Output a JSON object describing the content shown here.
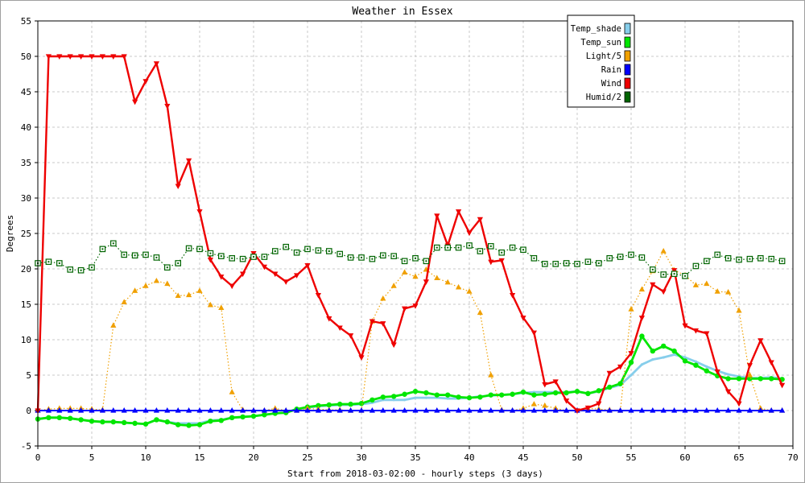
{
  "chart_data": {
    "type": "line",
    "title": "Weather in Essex",
    "xlabel": "Start from 2018-03-02:00 - hourly steps (3 days)",
    "ylabel": "Degrees",
    "xlim": [
      0,
      70
    ],
    "ylim": [
      -5,
      55
    ],
    "x_ticks": [
      0,
      5,
      10,
      15,
      20,
      25,
      30,
      35,
      40,
      45,
      50,
      55,
      60,
      65,
      70
    ],
    "y_ticks": [
      -5,
      0,
      5,
      10,
      15,
      20,
      25,
      30,
      35,
      40,
      45,
      50,
      55
    ],
    "grid": true,
    "legend_position": "top-right",
    "series": [
      {
        "name": "Temp_shade",
        "color": "#87ceeb",
        "marker": "dot",
        "style": "solid",
        "values": [
          -1.2,
          -1.0,
          -1.0,
          -1.1,
          -1.3,
          -1.5,
          -1.6,
          -1.6,
          -1.7,
          -1.8,
          -1.9,
          -1.3,
          -1.6,
          -1.8,
          -1.8,
          -1.8,
          -1.4,
          -1.3,
          -1.0,
          -0.9,
          -0.8,
          -0.6,
          -0.4,
          -0.3,
          0.2,
          0.4,
          0.6,
          0.7,
          0.8,
          0.8,
          0.9,
          1.1,
          1.5,
          1.5,
          1.5,
          1.8,
          1.8,
          1.8,
          1.7,
          1.7,
          1.8,
          2.0,
          2.1,
          2.2,
          2.3,
          2.5,
          2.6,
          2.6,
          2.6,
          2.6,
          2.7,
          2.4,
          2.7,
          3.2,
          3.6,
          5.0,
          6.5,
          7.2,
          7.5,
          7.9,
          7.5,
          6.9,
          6.2,
          5.6,
          5.1,
          4.8,
          4.6,
          4.6,
          4.7,
          4.5
        ]
      },
      {
        "name": "Temp_sun",
        "color": "#00e600",
        "marker": "circle",
        "style": "solid",
        "values": [
          -1.2,
          -1.0,
          -1.0,
          -1.1,
          -1.3,
          -1.5,
          -1.6,
          -1.6,
          -1.7,
          -1.8,
          -1.9,
          -1.3,
          -1.6,
          -2.0,
          -2.1,
          -2.0,
          -1.5,
          -1.4,
          -1.0,
          -0.9,
          -0.8,
          -0.6,
          -0.4,
          -0.3,
          0.2,
          0.5,
          0.7,
          0.8,
          0.9,
          0.9,
          1.0,
          1.5,
          1.9,
          2.0,
          2.3,
          2.7,
          2.5,
          2.2,
          2.2,
          1.9,
          1.8,
          1.9,
          2.2,
          2.2,
          2.3,
          2.6,
          2.2,
          2.3,
          2.5,
          2.5,
          2.7,
          2.4,
          2.8,
          3.3,
          3.8,
          6.8,
          10.5,
          8.4,
          9.1,
          8.4,
          7.0,
          6.4,
          5.6,
          4.9,
          4.5,
          4.5,
          4.5,
          4.5,
          4.5,
          4.4
        ]
      },
      {
        "name": "Light/5",
        "color": "#f0a000",
        "marker": "triangle-up",
        "style": "dotted",
        "values": [
          0.0,
          0.2,
          0.3,
          0.3,
          0.3,
          0.2,
          0.1,
          12.0,
          15.3,
          16.9,
          17.6,
          18.3,
          17.9,
          16.2,
          16.3,
          16.9,
          14.9,
          14.5,
          2.6,
          0.1,
          0.0,
          0.0,
          0.3,
          0.0,
          0.0,
          0.3,
          0.2,
          0.1,
          0.1,
          0.0,
          0.0,
          12.6,
          15.8,
          17.6,
          19.5,
          18.9,
          19.9,
          18.7,
          18.1,
          17.4,
          16.8,
          13.8,
          5.0,
          0.1,
          0.0,
          0.3,
          0.9,
          0.7,
          0.3,
          0.0,
          0.0,
          0.3,
          0.2,
          0.1,
          0.0,
          14.3,
          17.1,
          19.7,
          22.5,
          19.8,
          19.1,
          17.7,
          17.9,
          16.8,
          16.7,
          14.1,
          5.0,
          0.3,
          0.0,
          0.0
        ]
      },
      {
        "name": "Rain",
        "color": "#0000ff",
        "marker": "triangle-up",
        "style": "solid",
        "values": [
          0,
          0,
          0,
          0,
          0,
          0,
          0,
          0,
          0,
          0,
          0,
          0,
          0,
          0,
          0,
          0,
          0,
          0,
          0,
          0,
          0,
          0,
          0,
          0,
          0,
          0,
          0,
          0,
          0,
          0,
          0,
          0,
          0,
          0,
          0,
          0,
          0,
          0,
          0,
          0,
          0,
          0,
          0,
          0,
          0,
          0,
          0,
          0,
          0,
          0,
          0,
          0,
          0,
          0,
          0,
          0,
          0,
          0,
          0,
          0,
          0,
          0,
          0,
          0,
          0,
          0,
          0,
          0,
          0,
          0
        ]
      },
      {
        "name": "Wind",
        "color": "#ee0000",
        "marker": "triangle-down",
        "style": "solid",
        "values": [
          0.0,
          50.0,
          50.0,
          50.0,
          50.0,
          50.0,
          50.0,
          50.0,
          50.0,
          43.6,
          46.5,
          49.0,
          43.0,
          31.7,
          35.3,
          28.1,
          21.3,
          18.9,
          17.6,
          19.3,
          22.2,
          20.3,
          19.3,
          18.2,
          19.1,
          20.5,
          16.3,
          13.0,
          11.7,
          10.6,
          7.5,
          12.6,
          12.3,
          9.3,
          14.4,
          14.8,
          18.2,
          27.5,
          23.3,
          28.1,
          25.1,
          27.0,
          21.0,
          21.2,
          16.3,
          13.1,
          11.0,
          3.7,
          4.1,
          1.4,
          0.0,
          0.4,
          1.0,
          5.3,
          6.2,
          8.1,
          13.1,
          17.8,
          16.8,
          19.8,
          12.0,
          11.3,
          10.9,
          5.5,
          2.7,
          1.0,
          6.4,
          9.9,
          6.8,
          3.6
        ]
      },
      {
        "name": "Humid/2",
        "color": "#006400",
        "marker": "square",
        "style": "dotted",
        "values": [
          20.8,
          21.0,
          20.8,
          19.9,
          19.8,
          20.2,
          22.8,
          23.6,
          22.0,
          21.9,
          22.0,
          21.6,
          20.2,
          20.8,
          22.9,
          22.8,
          22.2,
          21.8,
          21.5,
          21.4,
          21.7,
          21.7,
          22.5,
          23.1,
          22.3,
          22.8,
          22.6,
          22.5,
          22.1,
          21.6,
          21.6,
          21.4,
          21.9,
          21.8,
          21.1,
          21.5,
          21.1,
          23.0,
          23.0,
          23.0,
          23.3,
          22.5,
          23.2,
          22.3,
          23.0,
          22.7,
          21.5,
          20.7,
          20.7,
          20.8,
          20.7,
          21.0,
          20.8,
          21.5,
          21.7,
          22.0,
          21.6,
          19.9,
          19.2,
          19.3,
          19.0,
          20.4,
          21.1,
          22.0,
          21.5,
          21.3,
          21.4,
          21.5,
          21.4,
          21.1
        ]
      }
    ]
  }
}
